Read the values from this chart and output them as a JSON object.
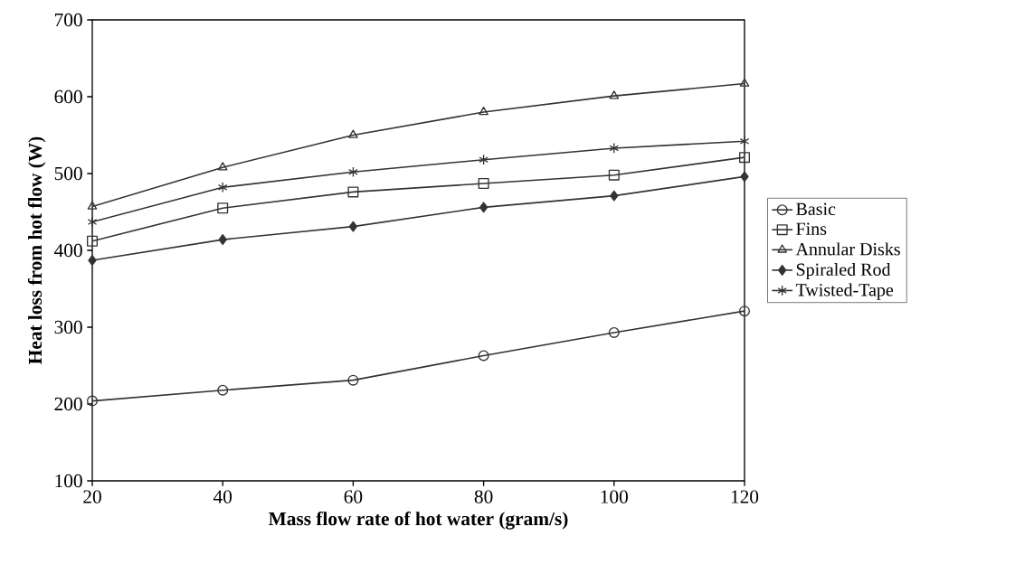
{
  "chart_data": {
    "type": "line",
    "xlabel": "Mass flow rate of hot water (gram/s)",
    "ylabel": "Heat loss from hot flow (W)",
    "x": [
      20,
      40,
      60,
      80,
      100,
      120
    ],
    "series": [
      {
        "name": "Basic",
        "color": "#333333",
        "marker": "circle",
        "values": [
          204,
          218,
          231,
          263,
          293,
          321
        ]
      },
      {
        "name": "Fins",
        "color": "#333333",
        "marker": "square",
        "values": [
          412,
          455,
          476,
          487,
          498,
          521
        ]
      },
      {
        "name": "Annular Disks",
        "color": "#333333",
        "marker": "triangle",
        "values": [
          457,
          508,
          550,
          580,
          601,
          617
        ]
      },
      {
        "name": "Spiraled Rod",
        "color": "#333333",
        "marker": "diamond",
        "values": [
          387,
          414,
          431,
          456,
          471,
          496
        ]
      },
      {
        "name": "Twisted-Tape",
        "color": "#333333",
        "marker": "cross",
        "values": [
          437,
          482,
          502,
          518,
          533,
          542
        ]
      }
    ],
    "xlim": [
      20,
      120
    ],
    "xticks": [
      20,
      40,
      60,
      80,
      100,
      120
    ],
    "ylim": [
      100,
      700
    ],
    "yticks": [
      100,
      200,
      300,
      400,
      500,
      600,
      700
    ],
    "grid": false,
    "legend": "right",
    "line_style": "solid"
  }
}
